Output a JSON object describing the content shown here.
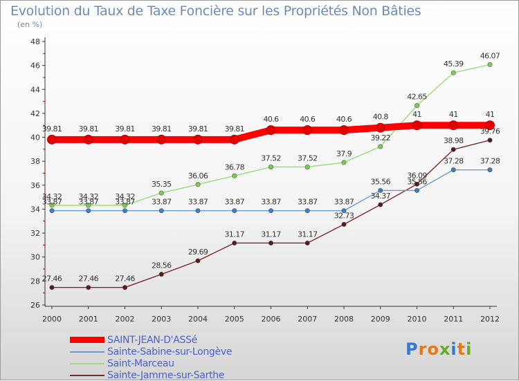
{
  "chart_data": {
    "type": "line",
    "title": "Evolution du Taux de Taxe Foncière sur les Propriétés Non Bâties",
    "ylabel": "(en %)",
    "xlabel": "",
    "categories": [
      "2000",
      "2001",
      "2002",
      "2003",
      "2004",
      "2005",
      "2006",
      "2007",
      "2008",
      "2009",
      "2010",
      "2011",
      "2012"
    ],
    "ylim": [
      26,
      48
    ],
    "yticks": [
      26,
      28,
      30,
      32,
      34,
      36,
      38,
      40,
      42,
      44,
      46,
      48
    ],
    "grid": false,
    "legend_position": "bottom-left",
    "series": [
      {
        "name": "Sainte-Jamme-sur-Sarthe",
        "color": "#7a2a2a",
        "marker": "#5a1818",
        "values": [
          27.46,
          27.46,
          27.46,
          28.56,
          29.69,
          31.17,
          31.17,
          31.17,
          32.73,
          34.37,
          36.09,
          38.98,
          39.76
        ],
        "labels": [
          "27.46",
          "27.46",
          "27.46",
          "28.56",
          "29.69",
          "31.17",
          "31.17",
          "31.17",
          "32.73",
          "34.37",
          "36.09",
          "38.98",
          "39.76"
        ]
      },
      {
        "name": "Sainte-Sabine-sur-Longève",
        "color": "#6b9cc9",
        "marker": "#3d7fc0",
        "values": [
          33.87,
          33.87,
          33.87,
          33.87,
          33.87,
          33.87,
          33.87,
          33.87,
          33.87,
          35.56,
          35.56,
          37.28,
          37.28
        ],
        "labels": [
          "33.87",
          "33.87",
          "33.87",
          "33.87",
          "33.87",
          "33.87",
          "33.87",
          "33.87",
          "33.87",
          "35.56",
          "35.56",
          "37.28",
          "37.28"
        ]
      },
      {
        "name": "Saint-Marceau",
        "color": "#9bdb7a",
        "marker": "#7ccc4e",
        "values": [
          34.32,
          34.32,
          34.32,
          35.35,
          36.06,
          36.78,
          37.52,
          37.52,
          37.9,
          39.22,
          42.65,
          45.39,
          46.07
        ],
        "labels": [
          "34.32",
          "34.32",
          "34.32",
          "35.35",
          "36.06",
          "36.78",
          "37.52",
          "37.52",
          "37.9",
          "39.22",
          "42.65",
          "45.39",
          "46.07"
        ]
      },
      {
        "name": "SAINT-JEAN-D'ASSé",
        "color": "#ff0000",
        "marker": "#e00000",
        "values": [
          39.81,
          39.81,
          39.81,
          39.81,
          39.81,
          39.81,
          40.6,
          40.6,
          40.6,
          40.8,
          41,
          41,
          41
        ],
        "labels": [
          "39.81",
          "39.81",
          "39.81",
          "39.81",
          "39.81",
          "39.81",
          "40.6",
          "40.6",
          "40.6",
          "40.8",
          "41",
          "41",
          "41"
        ]
      }
    ],
    "legend_order": [
      "SAINT-JEAN-D'ASSé",
      "Sainte-Sabine-sur-Longève",
      "Saint-Marceau",
      "Sainte-Jamme-sur-Sarthe"
    ]
  },
  "brand": {
    "text": "Proxiti",
    "letter_colors": [
      "#3a78c8",
      "#e07a1a",
      "#e07a1a",
      "#6aaa2a",
      "#3a78c8",
      "#e07a1a",
      "#6aaa2a"
    ]
  }
}
